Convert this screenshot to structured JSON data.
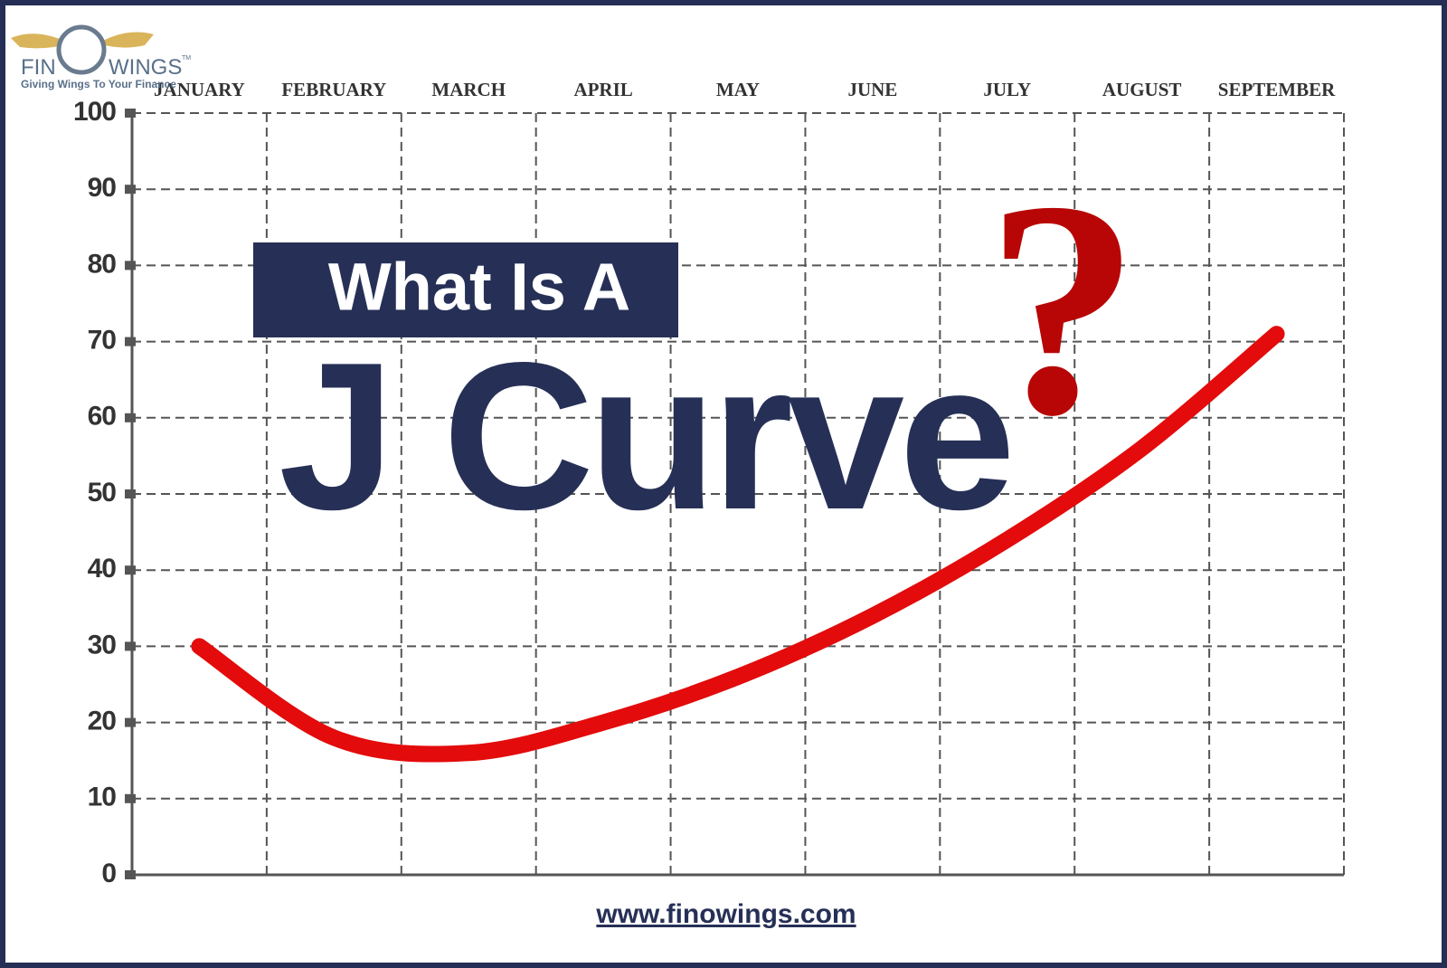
{
  "chart_data": {
    "type": "line",
    "title": "What Is A",
    "subtitle": "J Curve",
    "annotation": "?",
    "brand": {
      "left": "FIN",
      "right": "WINGS",
      "mark": "TM",
      "tagline": "Giving Wings To Your Finance"
    },
    "url": "www.finowings.com",
    "categories": [
      "JANUARY",
      "FEBRUARY",
      "MARCH",
      "APRIL",
      "MAY",
      "JUNE",
      "JULY",
      "AUGUST",
      "SEPTEMBER"
    ],
    "values": [
      30,
      18,
      16,
      20,
      26,
      34,
      44,
      56,
      71
    ],
    "color": "#e30b0b",
    "ylim": [
      0,
      100
    ],
    "yticks": [
      0,
      10,
      20,
      30,
      40,
      50,
      60,
      70,
      80,
      90,
      100
    ],
    "grid": true
  }
}
